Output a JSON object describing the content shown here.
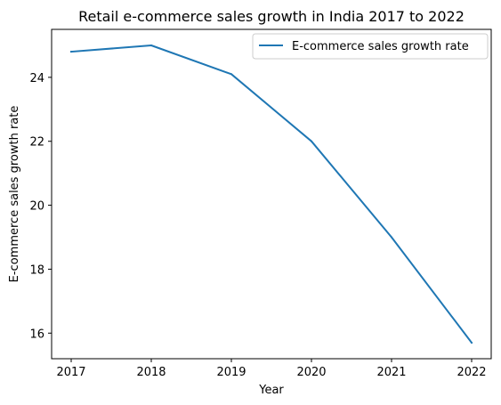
{
  "chart_data": {
    "type": "line",
    "title": "Retail e-commerce sales growth in India 2017 to 2022",
    "xlabel": "Year",
    "ylabel": "E-commerce sales growth rate",
    "x": [
      "2017",
      "2018",
      "2019",
      "2020",
      "2021",
      "2022"
    ],
    "series": [
      {
        "name": "E-commerce sales growth rate",
        "values": [
          24.8,
          25.0,
          24.1,
          22.0,
          19.0,
          15.7
        ],
        "color": "#1f77b4"
      }
    ],
    "y_ticks": [
      "16",
      "18",
      "20",
      "22",
      "24"
    ],
    "ylim": [
      15.2,
      25.5
    ],
    "grid": false,
    "legend_position": "top-right"
  }
}
